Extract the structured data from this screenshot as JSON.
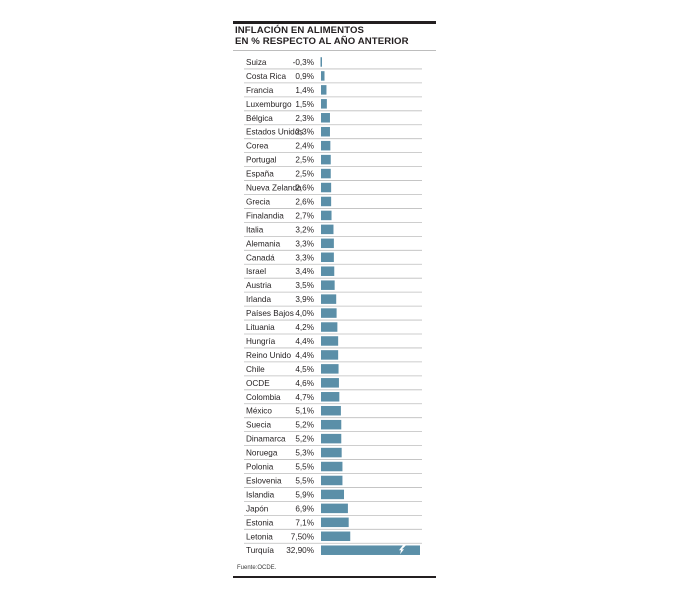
{
  "title_lines": [
    "INFLACIÓN EN ALIMENTOS",
    "EN % RESPECTO AL AÑO ANTERIOR"
  ],
  "source": "Fuente:OCDE.",
  "colors": {
    "bar": "#5b8fa8",
    "rule": "#bdbdbd",
    "text": "#231f20",
    "break_mark": "#ffffff"
  },
  "chart_data": {
    "type": "bar",
    "orientation": "horizontal",
    "title": "INFLACIÓN EN ALIMENTOS EN % RESPECTO AL AÑO ANTERIOR",
    "xlabel": "",
    "ylabel": "",
    "grid": false,
    "axis_break": {
      "category": "Turquía",
      "note": "bar truncated with break mark"
    },
    "categories": [
      "Suiza",
      "Costa Rica",
      "Francia",
      "Luxemburgo",
      "Bélgica",
      "Estados Unidos",
      "Corea",
      "Portugal",
      "España",
      "Nueva Zelanda",
      "Grecia",
      "Finalandia",
      "Italia",
      "Alemania",
      "Canadá",
      "Israel",
      "Austria",
      "Irlanda",
      "Países Bajos",
      "Lituania",
      "Hungría",
      "Reino Unido",
      "Chile",
      "OCDE",
      "Colombia",
      "México",
      "Suecia",
      "Dinamarca",
      "Noruega",
      "Polonia",
      "Eslovenia",
      "Islandia",
      "Japón",
      "Estonia",
      "Letonia",
      "Turquía"
    ],
    "values": [
      -0.3,
      0.9,
      1.4,
      1.5,
      2.3,
      2.3,
      2.4,
      2.5,
      2.5,
      2.6,
      2.6,
      2.7,
      3.2,
      3.3,
      3.3,
      3.4,
      3.5,
      3.9,
      4.0,
      4.2,
      4.4,
      4.4,
      4.5,
      4.6,
      4.7,
      5.1,
      5.2,
      5.2,
      5.3,
      5.5,
      5.5,
      5.9,
      6.9,
      7.1,
      7.5,
      32.9
    ],
    "value_labels": [
      "-0,3%",
      "0,9%",
      "1,4%",
      "1,5%",
      "2,3%",
      "2,3%",
      "2,4%",
      "2,5%",
      "2,5%",
      "2,6%",
      "2,6%",
      "2,7%",
      "3,2%",
      "3,3%",
      "3,3%",
      "3,4%",
      "3,5%",
      "3,9%",
      "4,0%",
      "4,2%",
      "4,4%",
      "4,4%",
      "4,5%",
      "4,6%",
      "4,7%",
      "5,1%",
      "5,2%",
      "5,2%",
      "5,3%",
      "5,5%",
      "5,5%",
      "5,9%",
      "6,9%",
      "7,1%",
      "7,50%",
      "32,90%"
    ]
  }
}
